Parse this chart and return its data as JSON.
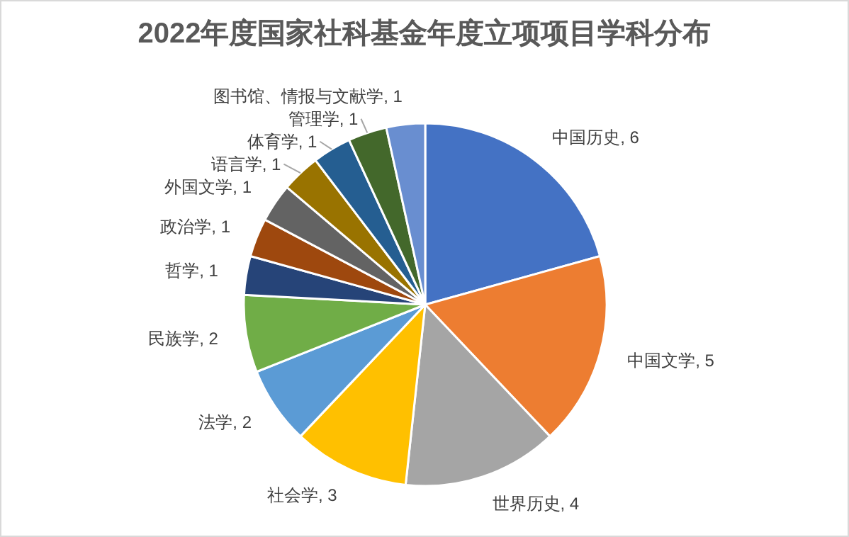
{
  "chart_data": {
    "type": "pie",
    "title": "2022年度国家社科基金年度立项项目学科分布",
    "categories": [
      "中国历史",
      "中国文学",
      "世界历史",
      "社会学",
      "法学",
      "民族学",
      "哲学",
      "政治学",
      "外国文学",
      "语言学",
      "体育学",
      "管理学",
      "图书馆、情报与文献学"
    ],
    "values": [
      6,
      5,
      4,
      3,
      2,
      2,
      1,
      1,
      1,
      1,
      1,
      1,
      1
    ],
    "value_labels": [
      ", 6",
      ", 5",
      ", 4",
      ", 3",
      ", 2",
      ", 2",
      ", 1",
      ", 1",
      ", 1",
      ", 1",
      ", 1",
      ", 1",
      ", 1"
    ],
    "colors": [
      "#4472c4",
      "#ed7d31",
      "#a5a5a5",
      "#ffc000",
      "#5b9bd5",
      "#70ad47",
      "#264478",
      "#9e480e",
      "#636363",
      "#997300",
      "#255e91",
      "#43682b",
      "#698ed0"
    ]
  }
}
